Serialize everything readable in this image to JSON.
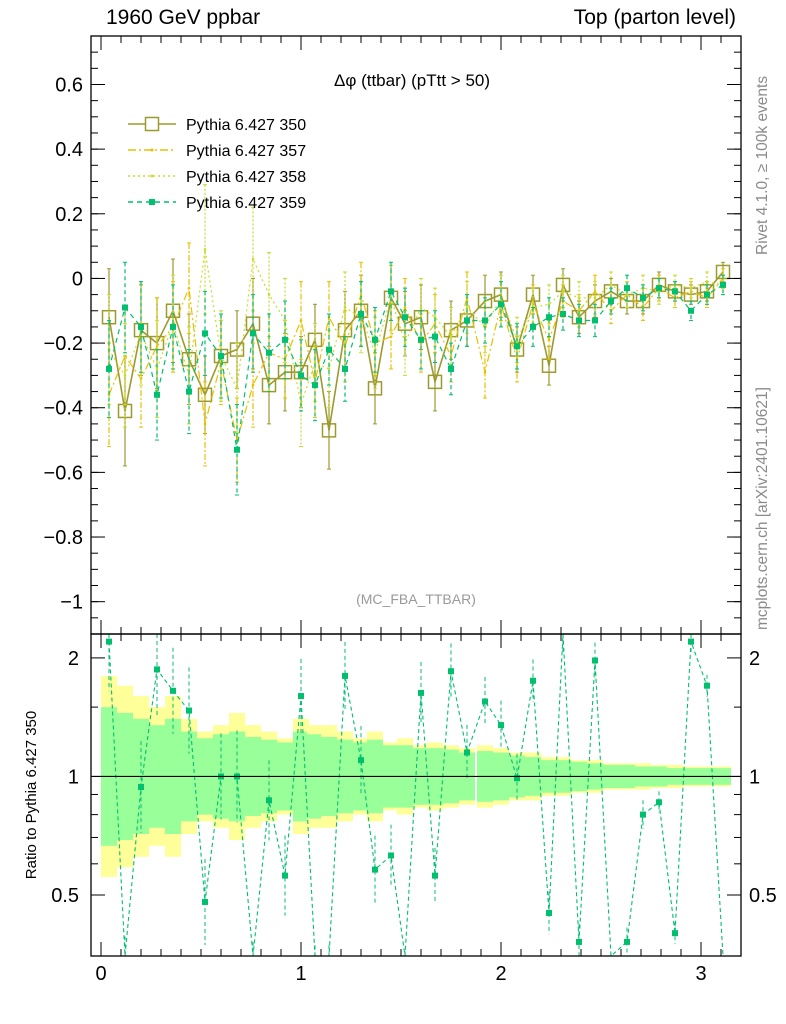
{
  "header": {
    "left": "1960 GeV ppbar",
    "right": "Top (parton level)"
  },
  "side_labels": {
    "rivet": "Rivet 4.1.0, ≥ 100k events",
    "mcplots": "mcplots.cern.ch [arXiv:2401.10621]"
  },
  "chart_data": {
    "type": "scatter",
    "title": "Δφ (ttbar) (pTtt > 50)",
    "watermark": "(MC_FBA_TTBAR)",
    "xlabel": "",
    "ylabel": "",
    "xlim": [
      -0.05,
      3.2
    ],
    "ylim": [
      -1.1,
      0.75
    ],
    "xticks": [
      0,
      1,
      2,
      3
    ],
    "xtick_labels": [
      "0",
      "1",
      "2",
      "3"
    ],
    "yticks": [
      0.6,
      0.4,
      0.2,
      0,
      -0.2,
      -0.4,
      -0.6,
      -0.8,
      -1
    ],
    "ytick_labels": [
      "0.6",
      "0.4",
      "0.2",
      "0",
      "−0.2",
      "−0.4",
      "−0.6",
      "−0.8",
      "−1"
    ],
    "legend_position": "top-left",
    "x": [
      0.04,
      0.12,
      0.2,
      0.28,
      0.36,
      0.44,
      0.52,
      0.6,
      0.68,
      0.76,
      0.84,
      0.92,
      1.0,
      1.07,
      1.14,
      1.22,
      1.3,
      1.37,
      1.45,
      1.52,
      1.6,
      1.67,
      1.75,
      1.83,
      1.92,
      2.0,
      2.08,
      2.16,
      2.24,
      2.31,
      2.39,
      2.47,
      2.55,
      2.63,
      2.71,
      2.79,
      2.87,
      2.95,
      3.03,
      3.11
    ],
    "series": [
      {
        "name": "Pythia 6.427 350",
        "color": "#9c9a2e",
        "style": "solid-open-square",
        "values": [
          -0.12,
          -0.41,
          -0.16,
          -0.2,
          -0.1,
          -0.25,
          -0.36,
          -0.24,
          -0.22,
          -0.14,
          -0.33,
          -0.29,
          -0.29,
          -0.19,
          -0.47,
          -0.16,
          -0.1,
          -0.34,
          -0.06,
          -0.14,
          -0.12,
          -0.32,
          -0.16,
          -0.13,
          -0.07,
          -0.05,
          -0.22,
          -0.05,
          -0.27,
          -0.02,
          -0.12,
          -0.07,
          -0.04,
          -0.07,
          -0.07,
          -0.02,
          -0.04,
          -0.05,
          -0.04,
          0.02
        ],
        "errors": [
          0.15,
          0.17,
          0.14,
          0.14,
          0.16,
          0.14,
          0.12,
          0.13,
          0.12,
          0.14,
          0.12,
          0.12,
          0.11,
          0.11,
          0.12,
          0.12,
          0.11,
          0.11,
          0.1,
          0.1,
          0.1,
          0.09,
          0.09,
          0.08,
          0.08,
          0.07,
          0.07,
          0.06,
          0.06,
          0.05,
          0.05,
          0.05,
          0.04,
          0.04,
          0.04,
          0.04,
          0.03,
          0.03,
          0.03,
          0.03
        ]
      },
      {
        "name": "Pythia 6.427 357",
        "color": "#e8c000",
        "style": "dash-dot",
        "values": [
          -0.36,
          -0.24,
          -0.31,
          -0.21,
          -0.15,
          -0.03,
          -0.45,
          -0.26,
          -0.5,
          -0.33,
          -0.23,
          -0.25,
          -0.13,
          -0.32,
          -0.12,
          -0.21,
          -0.05,
          -0.2,
          -0.18,
          -0.09,
          -0.2,
          -0.14,
          -0.24,
          -0.06,
          -0.29,
          -0.08,
          -0.25,
          -0.08,
          -0.19,
          -0.07,
          -0.1,
          -0.04,
          -0.1,
          -0.05,
          -0.09,
          -0.03,
          -0.06,
          -0.04,
          -0.06,
          0.0
        ],
        "errors": [
          0.16,
          0.15,
          0.15,
          0.15,
          0.14,
          0.14,
          0.13,
          0.13,
          0.13,
          0.13,
          0.12,
          0.12,
          0.12,
          0.11,
          0.11,
          0.11,
          0.1,
          0.1,
          0.1,
          0.09,
          0.09,
          0.09,
          0.08,
          0.08,
          0.08,
          0.07,
          0.07,
          0.06,
          0.06,
          0.05,
          0.05,
          0.05,
          0.04,
          0.04,
          0.04,
          0.04,
          0.03,
          0.03,
          0.03,
          0.03
        ]
      },
      {
        "name": "Pythia 6.427 358",
        "color": "#c8dc2a",
        "style": "dotted",
        "values": [
          -0.22,
          -0.3,
          -0.17,
          -0.28,
          -0.14,
          -0.3,
          0.09,
          -0.24,
          -0.34,
          0.06,
          -0.05,
          -0.13,
          -0.39,
          -0.26,
          -0.28,
          -0.09,
          -0.12,
          -0.23,
          -0.06,
          -0.2,
          -0.09,
          -0.12,
          -0.18,
          -0.09,
          -0.15,
          -0.06,
          -0.19,
          -0.09,
          -0.08,
          -0.04,
          -0.06,
          -0.06,
          -0.02,
          -0.05,
          -0.03,
          -0.04,
          -0.02,
          -0.03,
          -0.01,
          -0.02
        ],
        "errors": [
          0.17,
          0.16,
          0.16,
          0.15,
          0.15,
          0.15,
          0.2,
          0.14,
          0.14,
          0.16,
          0.13,
          0.13,
          0.13,
          0.12,
          0.12,
          0.11,
          0.11,
          0.11,
          0.1,
          0.1,
          0.09,
          0.09,
          0.09,
          0.08,
          0.08,
          0.07,
          0.07,
          0.06,
          0.06,
          0.05,
          0.05,
          0.05,
          0.04,
          0.04,
          0.04,
          0.04,
          0.03,
          0.03,
          0.03,
          0.03
        ]
      },
      {
        "name": "Pythia 6.427 359",
        "color": "#00bf6f",
        "style": "dashed-filled-square",
        "values": [
          -0.28,
          -0.09,
          -0.15,
          -0.36,
          -0.15,
          -0.35,
          -0.17,
          -0.24,
          -0.53,
          -0.17,
          -0.23,
          -0.19,
          -0.3,
          -0.33,
          -0.22,
          -0.28,
          -0.11,
          -0.19,
          -0.04,
          -0.12,
          -0.19,
          -0.18,
          -0.28,
          -0.13,
          -0.13,
          -0.08,
          -0.21,
          -0.15,
          -0.12,
          -0.11,
          -0.13,
          -0.13,
          -0.07,
          -0.03,
          -0.06,
          -0.03,
          -0.04,
          -0.1,
          -0.05,
          -0.02
        ],
        "errors": [
          0.15,
          0.14,
          0.14,
          0.14,
          0.13,
          0.13,
          0.13,
          0.13,
          0.14,
          0.12,
          0.12,
          0.12,
          0.11,
          0.11,
          0.11,
          0.1,
          0.1,
          0.1,
          0.09,
          0.09,
          0.09,
          0.08,
          0.08,
          0.08,
          0.07,
          0.07,
          0.07,
          0.06,
          0.06,
          0.05,
          0.05,
          0.05,
          0.04,
          0.04,
          0.04,
          0.03,
          0.03,
          0.03,
          0.03,
          0.03
        ]
      }
    ],
    "ratio": {
      "ylabel": "Ratio to Pythia 6.427 350",
      "ylim": [
        0.35,
        2.3
      ],
      "yticks": [
        2,
        1,
        0.5
      ],
      "ytick_labels": [
        "2",
        "1",
        "0.5"
      ],
      "reference_line": 1,
      "band_colors": {
        "outer": "#ffff99",
        "inner": "#99ff99"
      },
      "series_name": "Pythia 6.427 359",
      "values": [
        2.2,
        0.3,
        0.94,
        1.87,
        1.65,
        1.47,
        0.48,
        1.0,
        1.0,
        0.3,
        0.87,
        0.56,
        1.6,
        0.3,
        0.3,
        1.8,
        1.1,
        0.58,
        0.63,
        0.3,
        1.63,
        0.56,
        1.85,
        1.15,
        1.55,
        1.35,
        0.99,
        1.75,
        0.45,
        2.3,
        0.38,
        1.97,
        0.3,
        0.38,
        0.8,
        0.86,
        0.4,
        2.2,
        1.7,
        0.3
      ],
      "outer_band": [
        1.8,
        1.7,
        1.6,
        1.5,
        1.6,
        1.4,
        1.3,
        1.35,
        1.45,
        1.35,
        1.3,
        1.25,
        1.4,
        1.35,
        1.35,
        1.3,
        1.25,
        1.3,
        1.22,
        1.25,
        1.2,
        1.22,
        1.2,
        1.18,
        1.2,
        1.18,
        1.15,
        1.15,
        1.12,
        1.12,
        1.1,
        1.1,
        1.08,
        1.08,
        1.08,
        1.07,
        1.07,
        1.06,
        1.06,
        1.06
      ],
      "inner_band": [
        1.5,
        1.45,
        1.4,
        1.35,
        1.4,
        1.3,
        1.25,
        1.28,
        1.3,
        1.26,
        1.24,
        1.22,
        1.3,
        1.28,
        1.26,
        1.24,
        1.22,
        1.24,
        1.2,
        1.2,
        1.18,
        1.18,
        1.17,
        1.15,
        1.16,
        1.15,
        1.13,
        1.12,
        1.1,
        1.1,
        1.09,
        1.08,
        1.07,
        1.07,
        1.06,
        1.06,
        1.05,
        1.05,
        1.05,
        1.05
      ]
    }
  }
}
